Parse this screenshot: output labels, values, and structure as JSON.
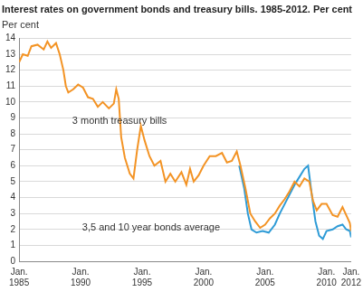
{
  "chart_data": {
    "type": "line",
    "title": "Interest rates on government bonds and treasury bills. 1985-2012. Per cent",
    "ylabel": "Per cent",
    "xlim": [
      1985,
      2012
    ],
    "xticks": [
      {
        "value": 1985,
        "label": "Jan. 1985"
      },
      {
        "value": 1990,
        "label": "Jan. 1990"
      },
      {
        "value": 1995,
        "label": "Jan. 1995"
      },
      {
        "value": 2000,
        "label": "Jan. 2000"
      },
      {
        "value": 2005,
        "label": "Jan. 2005"
      },
      {
        "value": 2010,
        "label": "Jan. 2010"
      },
      {
        "value": 2012,
        "label": "Jan. 2012"
      }
    ],
    "ylim": [
      0,
      14
    ],
    "yticks": [
      0,
      1,
      2,
      3,
      4,
      5,
      6,
      7,
      8,
      9,
      10,
      11,
      12,
      13,
      14
    ],
    "grid": true,
    "series": [
      {
        "name": "3 month treasury bills",
        "color": "#f39324",
        "x": [
          1985.0,
          1985.3,
          1985.7,
          1986.0,
          1986.5,
          1987.0,
          1987.3,
          1987.6,
          1988.0,
          1988.3,
          1988.6,
          1988.8,
          1989.0,
          1989.4,
          1989.8,
          1990.2,
          1990.6,
          1991.0,
          1991.4,
          1991.8,
          1992.3,
          1992.7,
          1992.9,
          1993.1,
          1993.3,
          1993.6,
          1994.0,
          1994.3,
          1994.6,
          1994.9,
          1995.2,
          1995.6,
          1996.0,
          1996.5,
          1996.9,
          1997.3,
          1997.7,
          1998.2,
          1998.6,
          1998.9,
          1999.2,
          1999.6,
          2000.0,
          2000.5,
          2001.0,
          2001.5,
          2001.9,
          2002.3,
          2002.7,
          2003.0,
          2003.4,
          2003.8,
          2004.2,
          2004.6,
          2005.0,
          2005.4,
          2005.8,
          2006.2,
          2006.6,
          2007.0,
          2007.4,
          2007.8,
          2008.2,
          2008.6,
          2008.9,
          2009.2,
          2009.6,
          2010.0,
          2010.5,
          2010.9,
          2011.3,
          2011.6,
          2011.9,
          2012.0
        ],
        "values": [
          12.5,
          13.0,
          12.9,
          13.5,
          13.6,
          13.3,
          13.8,
          13.4,
          13.7,
          13.0,
          12.0,
          11.0,
          10.6,
          10.8,
          11.1,
          10.9,
          10.3,
          10.2,
          9.7,
          10.0,
          9.6,
          9.9,
          10.8,
          10.2,
          7.8,
          6.5,
          5.5,
          5.2,
          7.0,
          8.5,
          7.6,
          6.6,
          6.0,
          6.3,
          5.0,
          5.5,
          5.0,
          5.6,
          4.8,
          5.8,
          5.0,
          5.4,
          6.0,
          6.6,
          6.6,
          6.8,
          6.2,
          6.3,
          6.9,
          6.0,
          4.6,
          3.0,
          2.5,
          2.1,
          2.3,
          2.7,
          3.0,
          3.5,
          3.9,
          4.4,
          5.0,
          4.7,
          5.2,
          5.0,
          3.8,
          3.2,
          3.6,
          3.6,
          2.9,
          2.8,
          3.4,
          2.9,
          2.4,
          1.9
        ]
      },
      {
        "name": "3,5 and 10 year bonds average",
        "color": "#2e9bd6",
        "x": [
          2002.9,
          2003.3,
          2003.6,
          2003.9,
          2004.3,
          2004.8,
          2005.3,
          2005.8,
          2006.2,
          2006.6,
          2007.0,
          2007.4,
          2007.8,
          2008.2,
          2008.5,
          2008.8,
          2009.1,
          2009.4,
          2009.7,
          2010.0,
          2010.5,
          2010.9,
          2011.3,
          2011.6,
          2011.9,
          2012.0
        ],
        "values": [
          6.0,
          4.6,
          3.0,
          2.0,
          1.8,
          1.9,
          1.8,
          2.3,
          3.0,
          3.6,
          4.2,
          4.8,
          5.3,
          5.8,
          6.0,
          4.2,
          2.5,
          1.6,
          1.4,
          1.9,
          2.0,
          2.2,
          2.3,
          2.0,
          1.9,
          1.5
        ]
      }
    ]
  }
}
